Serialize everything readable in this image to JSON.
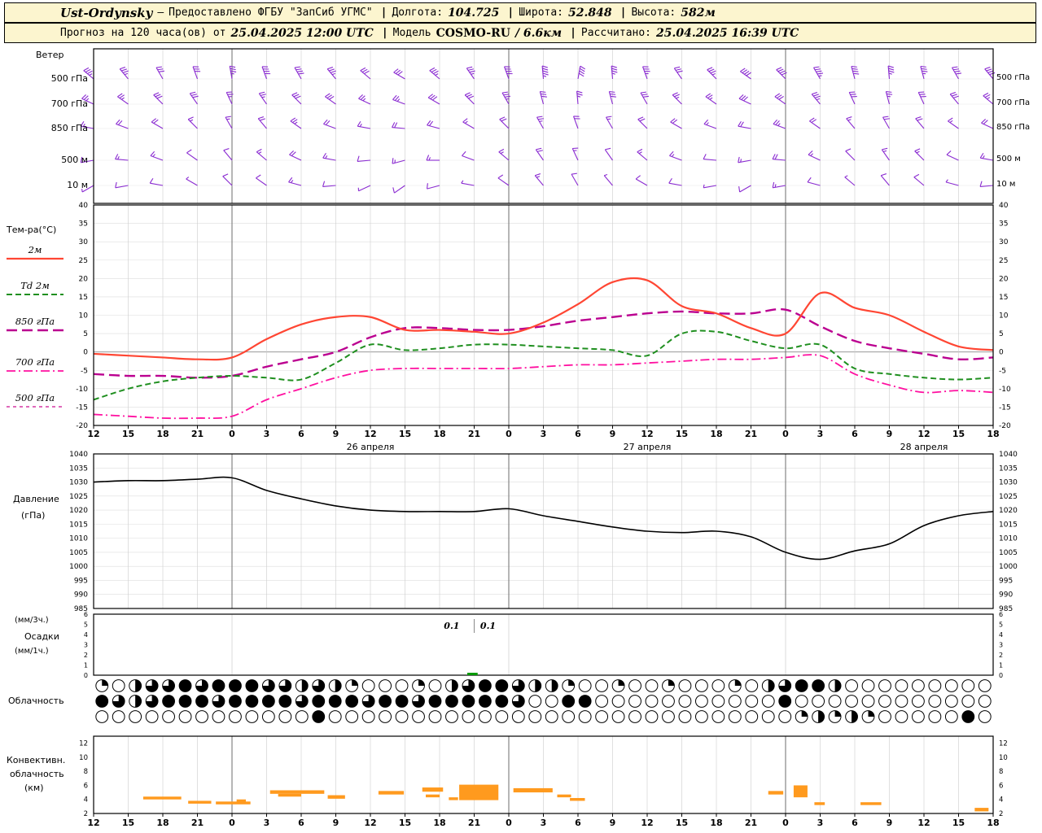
{
  "header": {
    "line1": {
      "station": "Ust-Ordynsky",
      "dash": "—",
      "provider": "Предоставлено ФГБУ \"ЗапСиб УГМС\"",
      "sep": "|",
      "lon_label": "Долгота:",
      "lon_value": "104.725",
      "lat_label": "Широта:",
      "lat_value": "52.848",
      "alt_label": "Высота:",
      "alt_value": "582м"
    },
    "line2": {
      "prefix": "Прогноз на 120 часа(ов) от",
      "run_time": "25.04.2025 12:00 UTC",
      "sep": "|",
      "model_label": "Модель",
      "model_name": "COSMO-RU",
      "model_res": "/ 6.6км",
      "calc_label": "Рассчитано:",
      "calc_time": "25.04.2025 16:39 UTC"
    }
  },
  "chart_data": {
    "type": "meteogram",
    "x_axis": {
      "step_hours": 3,
      "span_hours": 78,
      "hour_labels": [
        "12",
        "15",
        "18",
        "21",
        "0",
        "3",
        "6",
        "9",
        "12",
        "15",
        "18",
        "21",
        "0",
        "3",
        "6",
        "9",
        "12",
        "15",
        "18",
        "21",
        "0",
        "3",
        "6",
        "9",
        "12",
        "15",
        "18"
      ],
      "date_labels": [
        "26 апреля",
        "27 апреля",
        "28 апреля"
      ],
      "date_center_indices": [
        8,
        16,
        24
      ],
      "day_boundary_indices": [
        4,
        12,
        20
      ]
    },
    "wind": {
      "title": "Ветер",
      "color": "#8a2bd1",
      "levels": [
        {
          "label": "500 гПа",
          "dirs": [
            310,
            320,
            330,
            340,
            350,
            340,
            330,
            320,
            310,
            300,
            310,
            325,
            340,
            355,
            10,
            355,
            340,
            325,
            315,
            305,
            315,
            330,
            345,
            355,
            345,
            330,
            320
          ],
          "speeds": [
            35,
            35,
            30,
            30,
            35,
            40,
            40,
            35,
            30,
            30,
            35,
            35,
            40,
            45,
            40,
            35,
            35,
            30,
            35,
            40,
            40,
            45,
            40,
            35,
            35,
            40,
            40
          ]
        },
        {
          "label": "700 гПа",
          "dirs": [
            295,
            305,
            315,
            325,
            335,
            325,
            315,
            305,
            295,
            290,
            300,
            315,
            330,
            345,
            355,
            345,
            330,
            315,
            305,
            295,
            305,
            320,
            335,
            345,
            335,
            320,
            310
          ],
          "speeds": [
            25,
            25,
            30,
            30,
            25,
            25,
            30,
            30,
            25,
            25,
            30,
            30,
            35,
            30,
            25,
            30,
            30,
            25,
            25,
            30,
            30,
            35,
            30,
            25,
            30,
            30,
            25
          ]
        },
        {
          "label": "850 гПа",
          "dirs": [
            280,
            290,
            300,
            315,
            330,
            320,
            305,
            290,
            280,
            275,
            285,
            300,
            315,
            330,
            340,
            330,
            315,
            300,
            290,
            280,
            290,
            305,
            320,
            330,
            320,
            305,
            295
          ],
          "speeds": [
            15,
            20,
            20,
            15,
            15,
            20,
            25,
            20,
            15,
            20,
            20,
            15,
            20,
            25,
            20,
            15,
            20,
            20,
            15,
            20,
            25,
            20,
            15,
            20,
            20,
            15,
            20
          ]
        },
        {
          "label": "500 м",
          "dirs": [
            260,
            275,
            290,
            305,
            320,
            310,
            295,
            280,
            265,
            255,
            270,
            290,
            310,
            325,
            335,
            325,
            310,
            290,
            275,
            260,
            275,
            295,
            315,
            325,
            315,
            295,
            280
          ],
          "speeds": [
            10,
            15,
            15,
            10,
            10,
            15,
            20,
            15,
            10,
            15,
            15,
            10,
            15,
            20,
            15,
            10,
            15,
            15,
            10,
            15,
            20,
            15,
            10,
            15,
            15,
            10,
            15
          ]
        },
        {
          "label": "10 м",
          "dirs": [
            240,
            260,
            280,
            300,
            315,
            305,
            285,
            265,
            245,
            235,
            255,
            280,
            305,
            320,
            330,
            320,
            300,
            280,
            260,
            240,
            260,
            285,
            310,
            320,
            310,
            285,
            265
          ],
          "speeds": [
            5,
            10,
            10,
            5,
            10,
            10,
            15,
            10,
            5,
            10,
            10,
            5,
            10,
            15,
            10,
            5,
            10,
            10,
            5,
            10,
            15,
            10,
            5,
            10,
            10,
            5,
            10
          ]
        }
      ]
    },
    "temperature": {
      "label": "Тем-ра(°C)",
      "ylim": [
        -20,
        40
      ],
      "tick_step": 5,
      "series": [
        {
          "label": "2м",
          "color": "#ff4633",
          "dash": "solid",
          "width": 2.2,
          "values": [
            -0.5,
            -1,
            -1.5,
            -2,
            -1.5,
            3.5,
            7.5,
            9.5,
            9.5,
            6,
            6,
            5.5,
            5,
            8,
            13,
            19,
            19.5,
            12.5,
            10.5,
            6.5,
            5,
            16,
            12,
            10,
            5.5,
            1.5,
            0.5
          ]
        },
        {
          "label": "Td 2м",
          "color": "#1f8f1f",
          "dash": "dashed",
          "width": 2,
          "values": [
            -13,
            -10,
            -8,
            -7,
            -6.5,
            -7,
            -7.5,
            -3,
            2,
            0.5,
            1,
            2,
            2,
            1.5,
            1,
            0.5,
            -1,
            5,
            5.5,
            3,
            1,
            2,
            -4.5,
            -6,
            -7,
            -7.5,
            -7
          ]
        },
        {
          "label": "850 гПа",
          "color": "#bb0090",
          "dash": "longdash",
          "width": 2.4,
          "values": [
            -6,
            -6.5,
            -6.5,
            -7,
            -6.5,
            -4,
            -2,
            0,
            4,
            6.5,
            6.5,
            6,
            6,
            7,
            8.5,
            9.5,
            10.5,
            11,
            10.5,
            10.5,
            11.5,
            7,
            3,
            1,
            -0.5,
            -2,
            -1.5
          ]
        },
        {
          "label": "700 гПа",
          "color": "#ff10a0",
          "dash": "dashdot",
          "width": 1.8,
          "values": [
            -17,
            -17.5,
            -18,
            -18,
            -17.5,
            -13,
            -10,
            -7,
            -5,
            -4.5,
            -4.5,
            -4.5,
            -4.5,
            -4,
            -3.5,
            -3.5,
            -3,
            -2.5,
            -2,
            -2,
            -1.5,
            -1,
            -6,
            -9,
            -11,
            -10.5,
            -11
          ]
        },
        {
          "label": "500 гПа",
          "color": "#cc0f90",
          "dash": "shortdash",
          "width": 1.2,
          "values": []
        }
      ]
    },
    "pressure": {
      "label": "Давление",
      "unit_label": "(гПа)",
      "ylim": [
        985,
        1040
      ],
      "tick_step": 5,
      "color": "#000000",
      "values": [
        1030,
        1030.5,
        1030.5,
        1031,
        1031.5,
        1027,
        1024,
        1021.5,
        1020,
        1019.5,
        1019.5,
        1019.5,
        1020.5,
        1018,
        1016,
        1014,
        1012.5,
        1012,
        1012.5,
        1010.5,
        1005,
        1002.5,
        1005.5,
        1008,
        1014.5,
        1018,
        1019.5
      ]
    },
    "precipitation": {
      "label_rate3": "(мм/3ч.)",
      "label_name": "Осадки",
      "label_rate1": "(мм/1ч.)",
      "ylim": [
        0,
        6
      ],
      "bar_color": "#009900",
      "annotations": [
        {
          "text": "0.1",
          "x_index": 10.35
        },
        {
          "text": "0.1",
          "x_index": 11.4
        }
      ],
      "bars": [
        {
          "x0": 10.8,
          "x1": 11.1,
          "value": 0.1
        }
      ]
    },
    "cloudiness": {
      "label": "Облачность",
      "rows": [
        [
          2,
          0,
          4,
          6,
          6,
          8,
          6,
          8,
          8,
          8,
          6,
          6,
          4,
          6,
          4,
          2,
          0,
          0,
          0,
          2,
          0,
          4,
          6,
          8,
          8,
          6,
          4,
          4,
          2,
          0,
          0,
          2,
          0,
          0,
          2,
          0,
          0,
          0,
          2,
          0,
          4,
          6,
          8,
          8,
          4,
          0,
          0,
          0,
          0,
          0,
          0,
          0,
          0,
          0
        ],
        [
          8,
          6,
          4,
          6,
          8,
          8,
          8,
          6,
          8,
          8,
          8,
          8,
          6,
          8,
          8,
          8,
          6,
          8,
          8,
          6,
          8,
          8,
          8,
          8,
          8,
          6,
          0,
          0,
          8,
          8,
          0,
          0,
          0,
          0,
          0,
          0,
          0,
          0,
          0,
          0,
          0,
          8,
          0,
          0,
          0,
          0,
          0,
          0,
          0,
          0,
          0,
          0,
          0,
          0
        ],
        [
          0,
          0,
          0,
          0,
          0,
          0,
          0,
          0,
          0,
          0,
          0,
          0,
          0,
          8,
          0,
          0,
          0,
          0,
          0,
          0,
          0,
          0,
          0,
          0,
          0,
          0,
          0,
          0,
          0,
          0,
          0,
          0,
          0,
          0,
          0,
          0,
          0,
          0,
          0,
          0,
          0,
          0,
          2,
          4,
          2,
          4,
          2,
          0,
          0,
          0,
          0,
          0,
          8,
          0
        ]
      ]
    },
    "convective": {
      "label_line1": "Конвективн.",
      "label_line2": "облачность",
      "label_line3": "(км)",
      "ylim": [
        2,
        13
      ],
      "tick_labels": [
        12,
        10,
        8,
        6,
        4,
        2
      ],
      "bar_color": "#ff9a1e",
      "segments": [
        {
          "h0": 4.3,
          "h1": 7.6,
          "base": 4.0,
          "top": 4.4
        },
        {
          "h0": 8.2,
          "h1": 10.2,
          "base": 3.4,
          "top": 3.8
        },
        {
          "h0": 10.6,
          "h1": 13.6,
          "base": 3.3,
          "top": 3.7
        },
        {
          "h0": 12.4,
          "h1": 13.2,
          "base": 3.6,
          "top": 4.0
        },
        {
          "h0": 15.3,
          "h1": 20.0,
          "base": 4.8,
          "top": 5.3
        },
        {
          "h0": 16.0,
          "h1": 18.0,
          "base": 4.4,
          "top": 4.8
        },
        {
          "h0": 20.3,
          "h1": 21.8,
          "base": 4.1,
          "top": 4.6
        },
        {
          "h0": 24.7,
          "h1": 26.9,
          "base": 4.7,
          "top": 5.2
        },
        {
          "h0": 28.5,
          "h1": 30.3,
          "base": 5.1,
          "top": 5.7
        },
        {
          "h0": 28.8,
          "h1": 30.0,
          "base": 4.3,
          "top": 4.7
        },
        {
          "h0": 30.8,
          "h1": 31.6,
          "base": 3.9,
          "top": 4.3
        },
        {
          "h0": 31.7,
          "h1": 35.1,
          "base": 3.9,
          "top": 6.1
        },
        {
          "h0": 36.4,
          "h1": 39.8,
          "base": 5.0,
          "top": 5.6
        },
        {
          "h0": 40.2,
          "h1": 41.4,
          "base": 4.3,
          "top": 4.7
        },
        {
          "h0": 41.3,
          "h1": 42.6,
          "base": 3.8,
          "top": 4.2
        },
        {
          "h0": 58.5,
          "h1": 59.8,
          "base": 4.7,
          "top": 5.2
        },
        {
          "h0": 60.7,
          "h1": 61.9,
          "base": 4.3,
          "top": 6.0
        },
        {
          "h0": 62.5,
          "h1": 63.4,
          "base": 3.2,
          "top": 3.6
        },
        {
          "h0": 66.5,
          "h1": 68.3,
          "base": 3.2,
          "top": 3.6
        },
        {
          "h0": 76.4,
          "h1": 77.6,
          "base": 2.3,
          "top": 2.8
        }
      ]
    }
  }
}
